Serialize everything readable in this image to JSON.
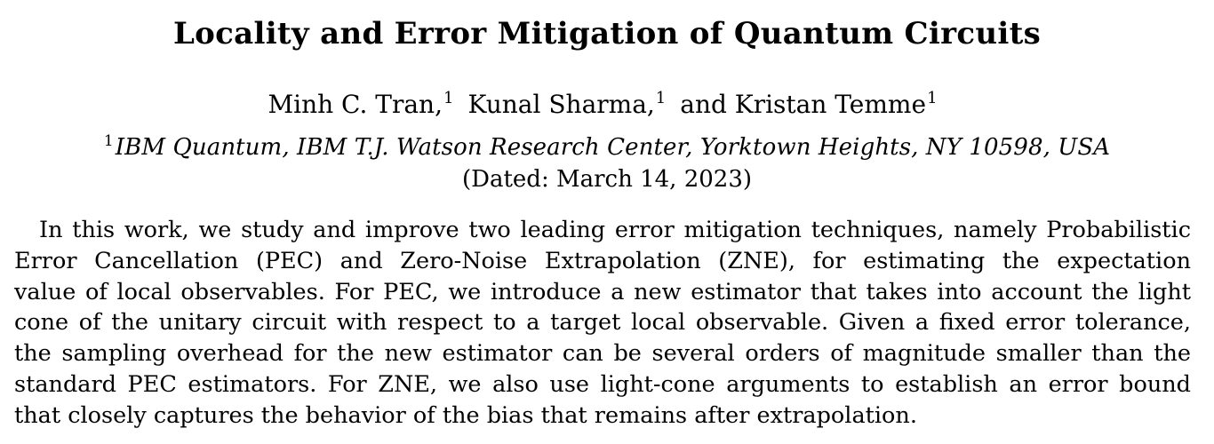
{
  "paper": {
    "title": "Locality and Error Mitigation of Quantum Circuits",
    "authors": [
      {
        "name": "Minh C. Tran,",
        "affil_mark": "1"
      },
      {
        "name": "Kunal Sharma,",
        "affil_mark": "1"
      },
      {
        "name": "and Kristan Temme",
        "affil_mark": "1"
      }
    ],
    "affiliation": {
      "mark": "1",
      "text": "IBM Quantum, IBM T.J. Watson Research Center, Yorktown Heights, NY 10598, USA"
    },
    "dated": "(Dated: March 14, 2023)",
    "abstract_lines": [
      "In this work, we study and improve two leading error mitigation techniques, namely Probabilistic",
      "Error Cancellation (PEC) and Zero-Noise Extrapolation (ZNE), for estimating the expectation",
      "value of local observables. For PEC, we introduce a new estimator that takes into account the light",
      "cone of the unitary circuit with respect to a target local observable. Given a fixed error tolerance,",
      "the sampling overhead for the new estimator can be several orders of magnitude smaller than the",
      "standard PEC estimators. For ZNE, we also use light-cone arguments to establish an error bound",
      "that closely captures the behavior of the bias that remains after extrapolation."
    ]
  }
}
